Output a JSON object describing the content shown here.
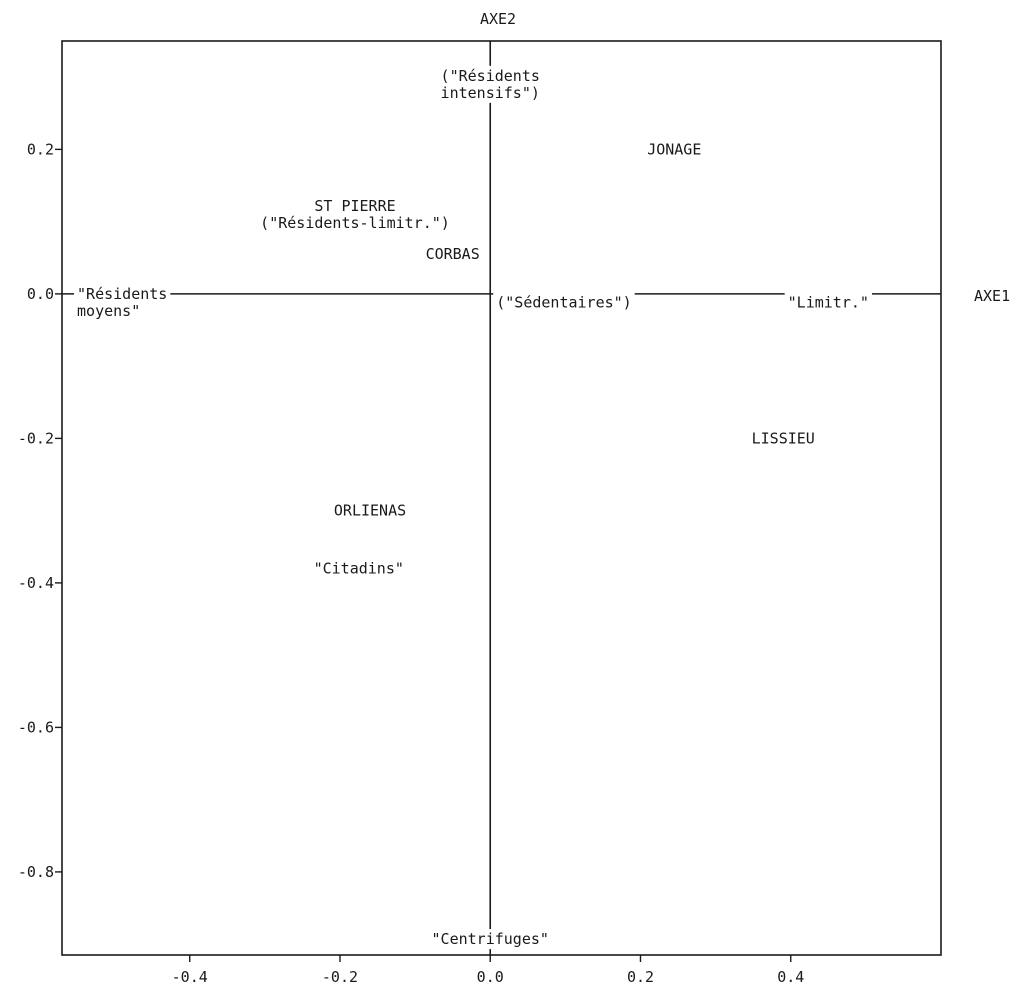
{
  "chart_data": {
    "type": "scatter",
    "title": "",
    "xlabel": "AXE1",
    "ylabel": "AXE2",
    "xlim": [
      -0.57,
      0.6
    ],
    "ylim": [
      -0.915,
      0.35
    ],
    "x_ticks": [
      -0.4,
      -0.2,
      0.0,
      0.2,
      0.4
    ],
    "x_tick_labels": [
      "-0.4",
      "-0.2",
      "0.0",
      "0.2",
      "0.4"
    ],
    "y_ticks": [
      0.2,
      0.0,
      -0.2,
      -0.4,
      -0.6,
      -0.8
    ],
    "y_tick_labels": [
      "0.2",
      "0.0",
      "-0.2",
      "-0.4",
      "-0.6",
      "-0.8"
    ],
    "grid": false,
    "origin_axes": true,
    "points": [
      {
        "lines": [
          "(\"Résidents",
          "intensifs\")"
        ],
        "x": 0.0,
        "y": 0.29,
        "anchor": "middle"
      },
      {
        "lines": [
          "JONAGE"
        ],
        "x": 0.245,
        "y": 0.2,
        "anchor": "middle"
      },
      {
        "lines": [
          "ST PIERRE",
          "(\"Résidents-limitr.\")"
        ],
        "x": -0.18,
        "y": 0.11,
        "anchor": "middle"
      },
      {
        "lines": [
          "CORBAS"
        ],
        "x": -0.05,
        "y": 0.055,
        "anchor": "middle"
      },
      {
        "lines": [
          "\"Résidents",
          "moyens\""
        ],
        "x": -0.55,
        "y": -0.012,
        "anchor": "start"
      },
      {
        "lines": [
          "(\"Sédentaires\")"
        ],
        "x": 0.008,
        "y": -0.012,
        "anchor": "start"
      },
      {
        "lines": [
          "\"Limitr.\""
        ],
        "x": 0.45,
        "y": -0.012,
        "anchor": "middle"
      },
      {
        "lines": [
          "LISSIEU"
        ],
        "x": 0.39,
        "y": -0.2,
        "anchor": "middle"
      },
      {
        "lines": [
          "ORLIENAS"
        ],
        "x": -0.16,
        "y": -0.3,
        "anchor": "middle"
      },
      {
        "lines": [
          "\"Citadins\""
        ],
        "x": -0.175,
        "y": -0.38,
        "anchor": "middle"
      },
      {
        "lines": [
          "\"Centrifuges\""
        ],
        "x": 0.0,
        "y": -0.893,
        "anchor": "middle"
      }
    ]
  }
}
